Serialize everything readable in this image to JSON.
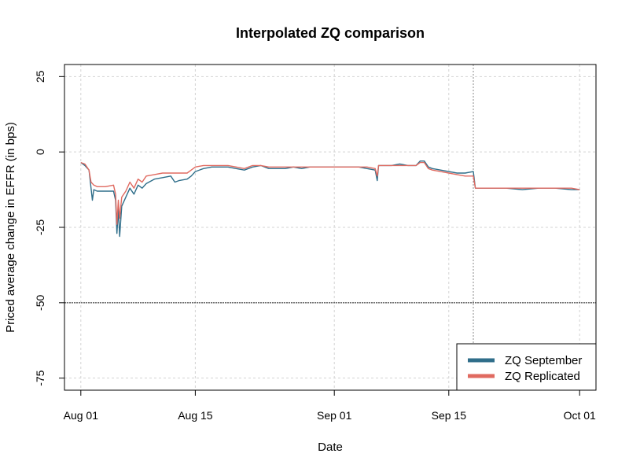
{
  "chart_data": {
    "type": "line",
    "title": "Interpolated ZQ comparison",
    "xlabel": "Date",
    "ylabel": "Priced average change in EFFR (in bps)",
    "x_axis": {
      "type": "date",
      "range": [
        "2024-07-30",
        "2024-10-03"
      ],
      "ticks": [
        {
          "value": "2024-08-01",
          "label": "Aug 01"
        },
        {
          "value": "2024-08-15",
          "label": "Aug 15"
        },
        {
          "value": "2024-09-01",
          "label": "Sep 01"
        },
        {
          "value": "2024-09-15",
          "label": "Sep 15"
        },
        {
          "value": "2024-10-01",
          "label": "Oct 01"
        }
      ]
    },
    "y_axis": {
      "range": [
        -79,
        29
      ],
      "ticks": [
        {
          "value": 25,
          "label": "25"
        },
        {
          "value": 0,
          "label": "0"
        },
        {
          "value": -25,
          "label": "-25"
        },
        {
          "value": -50,
          "label": "-50"
        },
        {
          "value": -75,
          "label": "-75"
        }
      ]
    },
    "grid": true,
    "reference_lines": [
      {
        "orientation": "horizontal",
        "value": -50,
        "style": "dashed-dark"
      },
      {
        "orientation": "vertical",
        "value": "2024-09-18",
        "style": "dotted"
      }
    ],
    "legend": {
      "position": "bottom-right",
      "entries": [
        {
          "name": "ZQ September",
          "color": "#2f6e8a"
        },
        {
          "name": "ZQ Replicated",
          "color": "#e06a60"
        }
      ]
    },
    "series": [
      {
        "name": "ZQ September",
        "color": "#2f6e8a",
        "points": [
          [
            "2024-08-01",
            -3.5
          ],
          [
            "2024-08-01T12:00",
            -4.5
          ],
          [
            "2024-08-02",
            -6.0
          ],
          [
            "2024-08-02T06:00",
            -12.0
          ],
          [
            "2024-08-02T10:00",
            -16.0
          ],
          [
            "2024-08-02T14:00",
            -12.5
          ],
          [
            "2024-08-03",
            -13.0
          ],
          [
            "2024-08-04",
            -13.0
          ],
          [
            "2024-08-05",
            -13.0
          ],
          [
            "2024-08-05T06:00",
            -16.0
          ],
          [
            "2024-08-05T10:00",
            -27.0
          ],
          [
            "2024-08-05T14:00",
            -19.0
          ],
          [
            "2024-08-05T18:00",
            -28.0
          ],
          [
            "2024-08-06",
            -18.0
          ],
          [
            "2024-08-06T12:00",
            -15.0
          ],
          [
            "2024-08-07",
            -12.0
          ],
          [
            "2024-08-07T12:00",
            -14.0
          ],
          [
            "2024-08-08",
            -11.0
          ],
          [
            "2024-08-08T12:00",
            -12.0
          ],
          [
            "2024-08-09",
            -10.5
          ],
          [
            "2024-08-10",
            -9.0
          ],
          [
            "2024-08-11",
            -8.5
          ],
          [
            "2024-08-12",
            -8.0
          ],
          [
            "2024-08-12T12:00",
            -10.0
          ],
          [
            "2024-08-13",
            -9.5
          ],
          [
            "2024-08-14",
            -9.0
          ],
          [
            "2024-08-14T12:00",
            -8.0
          ],
          [
            "2024-08-15",
            -6.5
          ],
          [
            "2024-08-16",
            -5.5
          ],
          [
            "2024-08-17",
            -5.0
          ],
          [
            "2024-08-19",
            -5.0
          ],
          [
            "2024-08-20",
            -5.5
          ],
          [
            "2024-08-21",
            -6.0
          ],
          [
            "2024-08-22",
            -5.0
          ],
          [
            "2024-08-23",
            -4.5
          ],
          [
            "2024-08-24",
            -5.5
          ],
          [
            "2024-08-26",
            -5.5
          ],
          [
            "2024-08-27",
            -5.0
          ],
          [
            "2024-08-28",
            -5.5
          ],
          [
            "2024-08-29",
            -5.0
          ],
          [
            "2024-08-30",
            -5.0
          ],
          [
            "2024-09-03",
            -5.0
          ],
          [
            "2024-09-04",
            -5.0
          ],
          [
            "2024-09-05",
            -5.5
          ],
          [
            "2024-09-06",
            -6.0
          ],
          [
            "2024-09-06T06:00",
            -9.5
          ],
          [
            "2024-09-06T10:00",
            -4.5
          ],
          [
            "2024-09-07",
            -4.5
          ],
          [
            "2024-09-08",
            -4.5
          ],
          [
            "2024-09-09",
            -4.0
          ],
          [
            "2024-09-10",
            -4.5
          ],
          [
            "2024-09-11",
            -4.5
          ],
          [
            "2024-09-11T12:00",
            -3.0
          ],
          [
            "2024-09-12",
            -3.0
          ],
          [
            "2024-09-12T12:00",
            -5.0
          ],
          [
            "2024-09-13",
            -5.5
          ],
          [
            "2024-09-14",
            -6.0
          ],
          [
            "2024-09-15",
            -6.5
          ],
          [
            "2024-09-16",
            -7.0
          ],
          [
            "2024-09-17",
            -7.0
          ],
          [
            "2024-09-18",
            -6.5
          ],
          [
            "2024-09-18T06:00",
            -12.0
          ],
          [
            "2024-09-20",
            -12.0
          ],
          [
            "2024-09-22",
            -12.0
          ],
          [
            "2024-09-24",
            -12.5
          ],
          [
            "2024-09-26",
            -12.0
          ],
          [
            "2024-09-28",
            -12.0
          ],
          [
            "2024-09-30",
            -12.5
          ],
          [
            "2024-10-01",
            -12.5
          ]
        ]
      },
      {
        "name": "ZQ Replicated",
        "color": "#e06a60",
        "points": [
          [
            "2024-08-01",
            -3.5
          ],
          [
            "2024-08-01T12:00",
            -4.0
          ],
          [
            "2024-08-02",
            -6.0
          ],
          [
            "2024-08-02T06:00",
            -10.0
          ],
          [
            "2024-08-02T14:00",
            -11.0
          ],
          [
            "2024-08-03",
            -11.5
          ],
          [
            "2024-08-04",
            -11.5
          ],
          [
            "2024-08-05",
            -11.0
          ],
          [
            "2024-08-05T06:00",
            -14.0
          ],
          [
            "2024-08-05T10:00",
            -24.0
          ],
          [
            "2024-08-05T14:00",
            -16.0
          ],
          [
            "2024-08-05T18:00",
            -22.0
          ],
          [
            "2024-08-06",
            -15.0
          ],
          [
            "2024-08-06T12:00",
            -13.0
          ],
          [
            "2024-08-07",
            -10.0
          ],
          [
            "2024-08-07T12:00",
            -12.0
          ],
          [
            "2024-08-08",
            -9.0
          ],
          [
            "2024-08-08T12:00",
            -10.0
          ],
          [
            "2024-08-09",
            -8.0
          ],
          [
            "2024-08-10",
            -7.5
          ],
          [
            "2024-08-11",
            -7.0
          ],
          [
            "2024-08-12",
            -7.0
          ],
          [
            "2024-08-13",
            -7.0
          ],
          [
            "2024-08-14",
            -7.0
          ],
          [
            "2024-08-14T12:00",
            -6.0
          ],
          [
            "2024-08-15",
            -5.0
          ],
          [
            "2024-08-16",
            -4.5
          ],
          [
            "2024-08-17",
            -4.5
          ],
          [
            "2024-08-19",
            -4.5
          ],
          [
            "2024-08-20",
            -5.0
          ],
          [
            "2024-08-21",
            -5.5
          ],
          [
            "2024-08-22",
            -4.5
          ],
          [
            "2024-08-23",
            -4.5
          ],
          [
            "2024-08-24",
            -5.0
          ],
          [
            "2024-08-26",
            -5.0
          ],
          [
            "2024-08-27",
            -5.0
          ],
          [
            "2024-08-28",
            -5.0
          ],
          [
            "2024-08-29",
            -5.0
          ],
          [
            "2024-08-30",
            -5.0
          ],
          [
            "2024-09-03",
            -5.0
          ],
          [
            "2024-09-04",
            -5.0
          ],
          [
            "2024-09-05",
            -5.0
          ],
          [
            "2024-09-06",
            -5.5
          ],
          [
            "2024-09-06T06:00",
            -8.0
          ],
          [
            "2024-09-06T10:00",
            -4.5
          ],
          [
            "2024-09-07",
            -4.5
          ],
          [
            "2024-09-08",
            -4.5
          ],
          [
            "2024-09-09",
            -4.5
          ],
          [
            "2024-09-10",
            -4.5
          ],
          [
            "2024-09-11",
            -4.5
          ],
          [
            "2024-09-11T12:00",
            -3.5
          ],
          [
            "2024-09-12",
            -3.5
          ],
          [
            "2024-09-12T12:00",
            -5.5
          ],
          [
            "2024-09-13",
            -6.0
          ],
          [
            "2024-09-14",
            -6.5
          ],
          [
            "2024-09-15",
            -7.0
          ],
          [
            "2024-09-16",
            -7.5
          ],
          [
            "2024-09-17",
            -8.0
          ],
          [
            "2024-09-18",
            -8.0
          ],
          [
            "2024-09-18T06:00",
            -12.0
          ],
          [
            "2024-09-20",
            -12.0
          ],
          [
            "2024-09-22",
            -12.0
          ],
          [
            "2024-09-24",
            -12.0
          ],
          [
            "2024-09-26",
            -12.0
          ],
          [
            "2024-09-28",
            -12.0
          ],
          [
            "2024-09-30",
            -12.0
          ],
          [
            "2024-10-01",
            -12.5
          ]
        ]
      }
    ]
  }
}
